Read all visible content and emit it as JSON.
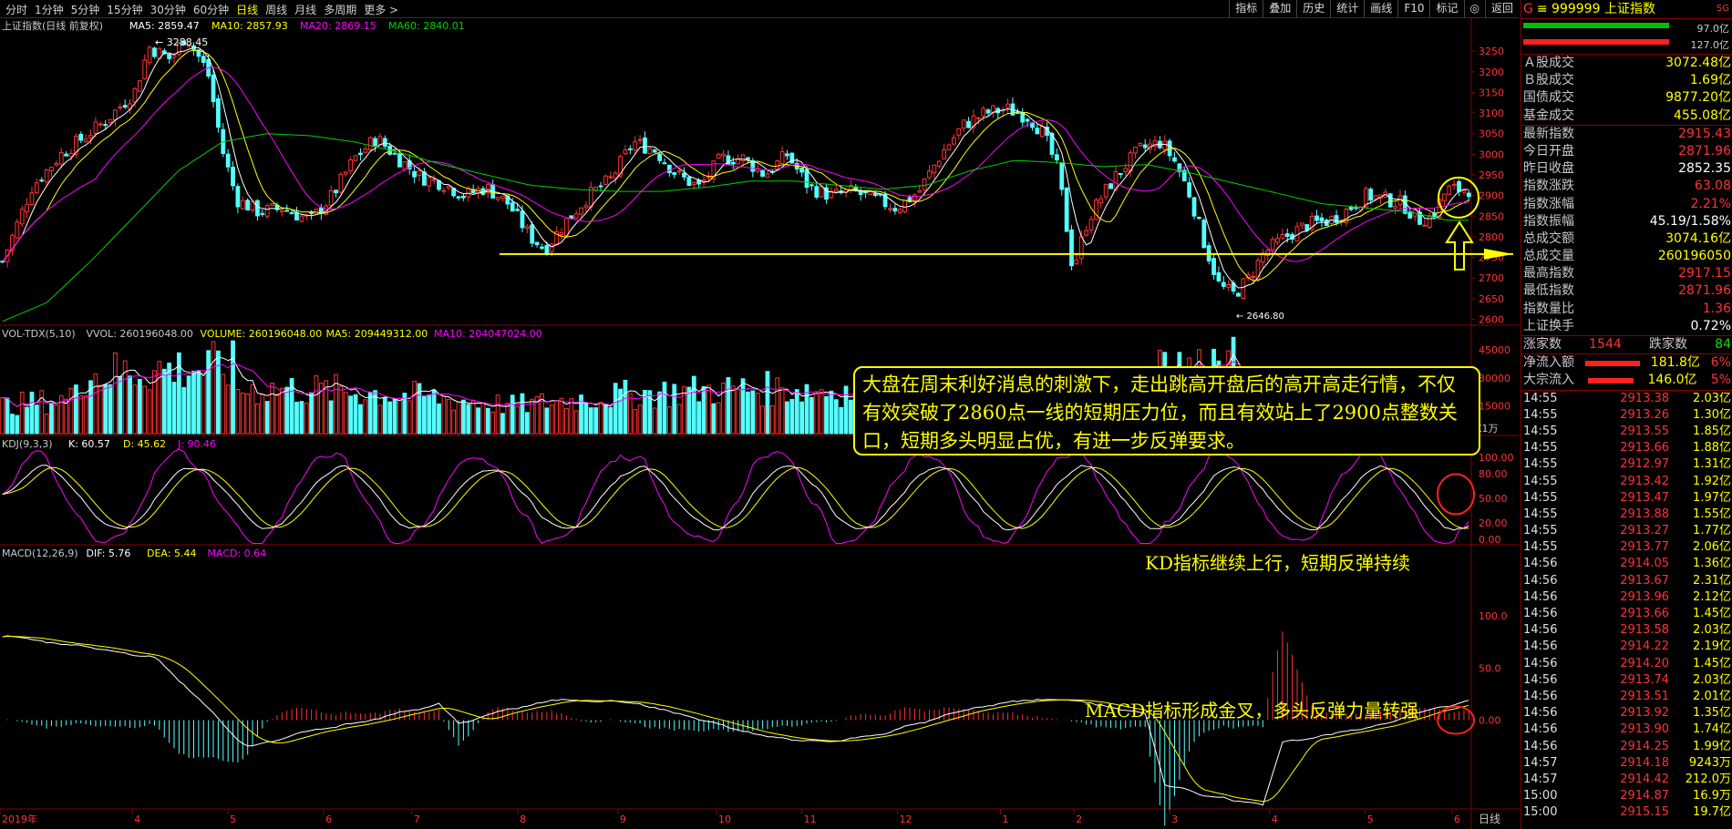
{
  "toolbar": {
    "timeframes": [
      "分时",
      "1分钟",
      "5分钟",
      "15分钟",
      "30分钟",
      "60分钟",
      "日线",
      "周线",
      "月线",
      "多周期",
      "更多 >"
    ],
    "active": "日线",
    "tools": [
      "指标",
      "叠加",
      "历史",
      "统计",
      "画线",
      "F10",
      "标记",
      "◎",
      "返回"
    ]
  },
  "main_legend": {
    "title": "上证指数(日线 前复权)",
    "ma5": "MA5: 2859.47",
    "ma10": "MA10: 2857.93",
    "ma20": "MA20: 2869.15",
    "ma60": "MA60: 2840.01",
    "high_mark": "3288.45",
    "low_mark": "2646.80"
  },
  "vol_legend": {
    "title": "VOL-TDX(5,10)",
    "vvol": "VVOL: 260196048.00",
    "volume": "VOLUME: 260196048.00",
    "ma5": "MA5: 209449312.00",
    "ma10": "MA10: 204047024.00",
    "unit": "X1万"
  },
  "kdj_legend": {
    "title": "KDJ(9,3,3)",
    "k": "K: 60.57",
    "d": "D: 45.62",
    "j": "J: 90.46"
  },
  "macd_legend": {
    "title": "MACD(12,26,9)",
    "dif": "DIF: 5.76",
    "dea": "DEA: 5.44",
    "macd": "MACD: 0.64"
  },
  "annotations": {
    "main": "大盘在周末利好消息的刺激下，走出跳高开盘后的高开高走行情，不仅有效突破了2860点一线的短期压力位，而且有效站上了2900点整数关口，短期多头明显占优，有进一步反弹要求。",
    "kdj": "KD指标继续上行，短期反弹持续",
    "macd": "MACD指标形成金叉，多头反弹力量转强"
  },
  "chart_data": {
    "type": "candlestick",
    "y_price_ticks": [
      3250,
      3200,
      3150,
      3100,
      3050,
      3000,
      2950,
      2900,
      2850,
      2800,
      2750,
      2700,
      2650,
      2600
    ],
    "price_range": [
      2590,
      3290
    ],
    "vol_ticks": [
      "30000",
      "15000"
    ],
    "vol_top_tick": "45000",
    "kdj_ticks": [
      "100.00",
      "80.00",
      "50.00",
      "20.00",
      "0.00"
    ],
    "macd_ticks": [
      "100.0",
      "50.0",
      "0.00"
    ],
    "x_month_labels": [
      "2019年",
      "4",
      "5",
      "6",
      "7",
      "8",
      "9",
      "10",
      "11",
      "12",
      "1",
      "2",
      "3",
      "4",
      "5",
      "6"
    ],
    "x_month_fractions": [
      0.0,
      0.09,
      0.155,
      0.22,
      0.28,
      0.352,
      0.42,
      0.487,
      0.545,
      0.61,
      0.68,
      0.73,
      0.795,
      0.863,
      0.928,
      0.987
    ],
    "bottom_right_label": "日线",
    "support_level": 2758,
    "price_path": [
      [
        0,
        2740
      ],
      [
        0.02,
        2920
      ],
      [
        0.04,
        3000
      ],
      [
        0.07,
        3080
      ],
      [
        0.09,
        3150
      ],
      [
        0.1,
        3260
      ],
      [
        0.115,
        3230
      ],
      [
        0.125,
        3288
      ],
      [
        0.14,
        3200
      ],
      [
        0.15,
        3010
      ],
      [
        0.16,
        2890
      ],
      [
        0.175,
        2860
      ],
      [
        0.19,
        2870
      ],
      [
        0.21,
        2840
      ],
      [
        0.225,
        2900
      ],
      [
        0.24,
        2990
      ],
      [
        0.255,
        3040
      ],
      [
        0.27,
        2990
      ],
      [
        0.285,
        2945
      ],
      [
        0.3,
        2930
      ],
      [
        0.315,
        2900
      ],
      [
        0.33,
        2920
      ],
      [
        0.345,
        2880
      ],
      [
        0.36,
        2800
      ],
      [
        0.37,
        2770
      ],
      [
        0.385,
        2840
      ],
      [
        0.4,
        2900
      ],
      [
        0.415,
        2940
      ],
      [
        0.43,
        3030
      ],
      [
        0.445,
        3010
      ],
      [
        0.46,
        2950
      ],
      [
        0.475,
        2920
      ],
      [
        0.49,
        2990
      ],
      [
        0.505,
        2990
      ],
      [
        0.52,
        2950
      ],
      [
        0.535,
        3000
      ],
      [
        0.55,
        2920
      ],
      [
        0.565,
        2900
      ],
      [
        0.58,
        2910
      ],
      [
        0.595,
        2890
      ],
      [
        0.61,
        2870
      ],
      [
        0.625,
        2910
      ],
      [
        0.64,
        3000
      ],
      [
        0.655,
        3070
      ],
      [
        0.67,
        3100
      ],
      [
        0.685,
        3110
      ],
      [
        0.7,
        3090
      ],
      [
        0.71,
        3050
      ],
      [
        0.72,
        2960
      ],
      [
        0.73,
        2720
      ],
      [
        0.74,
        2840
      ],
      [
        0.75,
        2900
      ],
      [
        0.76,
        2950
      ],
      [
        0.775,
        3010
      ],
      [
        0.79,
        3030
      ],
      [
        0.8,
        2980
      ],
      [
        0.81,
        2900
      ],
      [
        0.82,
        2780
      ],
      [
        0.83,
        2680
      ],
      [
        0.84,
        2660
      ],
      [
        0.85,
        2700
      ],
      [
        0.86,
        2760
      ],
      [
        0.875,
        2800
      ],
      [
        0.89,
        2830
      ],
      [
        0.905,
        2840
      ],
      [
        0.915,
        2860
      ],
      [
        0.93,
        2900
      ],
      [
        0.945,
        2890
      ],
      [
        0.955,
        2880
      ],
      [
        0.965,
        2840
      ],
      [
        0.975,
        2850
      ],
      [
        0.985,
        2915
      ]
    ],
    "ma60_path": [
      [
        0,
        2595
      ],
      [
        0.03,
        2640
      ],
      [
        0.06,
        2740
      ],
      [
        0.09,
        2850
      ],
      [
        0.12,
        2960
      ],
      [
        0.15,
        3030
      ],
      [
        0.18,
        3050
      ],
      [
        0.21,
        3045
      ],
      [
        0.24,
        3030
      ],
      [
        0.27,
        3005
      ],
      [
        0.3,
        2975
      ],
      [
        0.33,
        2950
      ],
      [
        0.36,
        2925
      ],
      [
        0.39,
        2915
      ],
      [
        0.42,
        2910
      ],
      [
        0.45,
        2910
      ],
      [
        0.48,
        2920
      ],
      [
        0.51,
        2935
      ],
      [
        0.54,
        2935
      ],
      [
        0.57,
        2925
      ],
      [
        0.6,
        2915
      ],
      [
        0.63,
        2925
      ],
      [
        0.66,
        2960
      ],
      [
        0.69,
        2985
      ],
      [
        0.72,
        2980
      ],
      [
        0.75,
        2970
      ],
      [
        0.78,
        2975
      ],
      [
        0.81,
        2955
      ],
      [
        0.84,
        2930
      ],
      [
        0.87,
        2905
      ],
      [
        0.9,
        2880
      ],
      [
        0.93,
        2870
      ],
      [
        0.96,
        2860
      ],
      [
        0.985,
        2840
      ]
    ]
  }
}
